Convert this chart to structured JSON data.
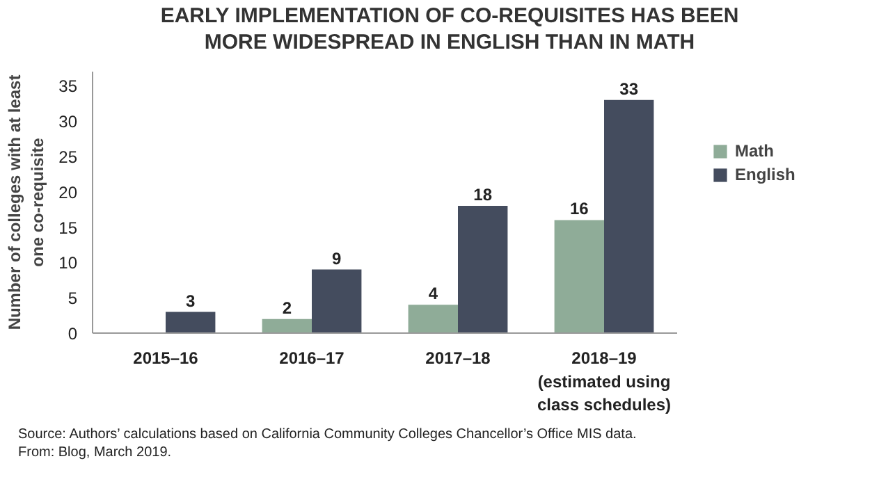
{
  "chart_data": {
    "type": "bar",
    "title": "EARLY IMPLEMENTATION OF CO-REQUISITES HAS BEEN\nMORE WIDESPREAD IN ENGLISH THAN IN MATH",
    "ylabel": "Number of colleges with at least\none co-requisite",
    "categories": [
      "2015–16",
      "2016–17",
      "2017–18",
      "2018–19\n(estimated using\nclass schedules)"
    ],
    "series": [
      {
        "name": "Math",
        "color": "#8fac98",
        "values": [
          0,
          2,
          4,
          16
        ],
        "value_labels": [
          null,
          "2",
          "4",
          "16"
        ]
      },
      {
        "name": "English",
        "color": "#444c5e",
        "values": [
          3,
          9,
          18,
          33
        ],
        "value_labels": [
          "3",
          "9",
          "18",
          "33"
        ]
      }
    ],
    "ylim": [
      0,
      37
    ],
    "yticks": [
      0,
      5,
      10,
      15,
      20,
      25,
      30,
      35
    ],
    "grid": false,
    "legend": "right",
    "annotations": [
      "Source: Authors’ calculations based on California Community Colleges Chancellor’s Office MIS data.",
      "From: Blog, March 2019."
    ]
  }
}
